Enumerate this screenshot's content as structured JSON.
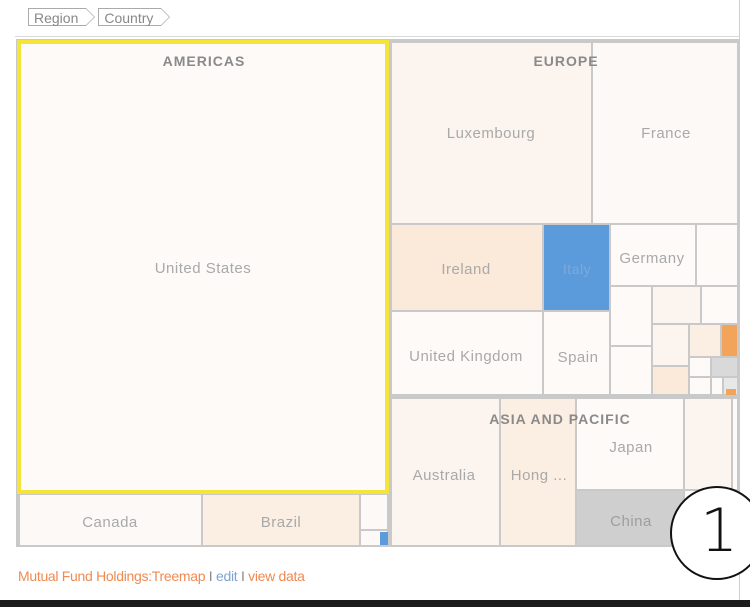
{
  "breadcrumb": {
    "items": [
      "Region",
      "Country"
    ]
  },
  "footer": {
    "title": "Mutual Fund Holdings:Treemap",
    "separator": "I",
    "edit_label": "edit",
    "view_label": "view data"
  },
  "step_badge": "1",
  "colors": {
    "highlight_border": "#f5e53a",
    "selected_fill": "#5b9bdc",
    "china_fill": "#cfcfcf",
    "accent_orange": "#f2a45a"
  },
  "chart_data": {
    "type": "treemap",
    "hierarchy": [
      "Region",
      "Country"
    ],
    "regions": [
      {
        "name": "AMERICAS",
        "highlighted": true,
        "countries": [
          {
            "name": "United States"
          },
          {
            "name": "Canada"
          },
          {
            "name": "Brazil"
          }
        ]
      },
      {
        "name": "EUROPE",
        "countries": [
          {
            "name": "Luxembourg"
          },
          {
            "name": "France"
          },
          {
            "name": "Ireland"
          },
          {
            "name": "Italy",
            "selected": true
          },
          {
            "name": "Germany"
          },
          {
            "name": "United Kingdom"
          },
          {
            "name": "Spain"
          }
        ]
      },
      {
        "name": "ASIA AND PACIFIC",
        "countries": [
          {
            "name": "Australia"
          },
          {
            "name": "Hong ..."
          },
          {
            "name": "Japan"
          },
          {
            "name": "China"
          }
        ]
      }
    ]
  }
}
